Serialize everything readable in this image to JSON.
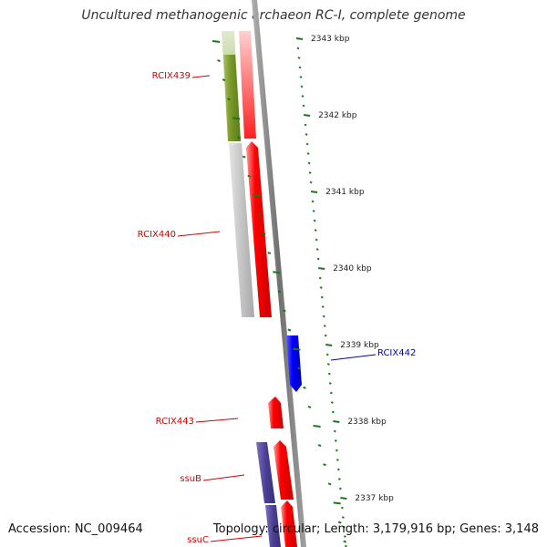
{
  "title": "Uncultured methanogenic archaeon RC-I, complete genome",
  "accession_text": "Accession: NC_009464",
  "topology_text": "Topology: circular; Length: 3,179,916 bp; Genes: 3,148",
  "colors": {
    "forward_gene": "#ff0000",
    "reverse_gene_blue": "#0000ff",
    "gene_label_red": "#d40000",
    "gene_label_blue": "#0000cc",
    "olive_feature": "#7a9a2a",
    "gray_feature": "#c0c0c0",
    "purple_feature": "#4b3f94",
    "tick_mark": "#1a7a1a",
    "backbone": "#888888"
  },
  "scale_labels": [
    "2343 kbp",
    "2342 kbp",
    "2341 kbp",
    "2340 kbp",
    "2339 kbp",
    "2338 kbp",
    "2337 kbp"
  ],
  "gene_labels": [
    {
      "text": "RCIX439",
      "color": "red"
    },
    {
      "text": "RCIX440",
      "color": "red"
    },
    {
      "text": "RCIX442",
      "color": "blue"
    },
    {
      "text": "RCIX443",
      "color": "red"
    },
    {
      "text": "ssuB",
      "color": "red"
    },
    {
      "text": "ssuC",
      "color": "red"
    }
  ]
}
